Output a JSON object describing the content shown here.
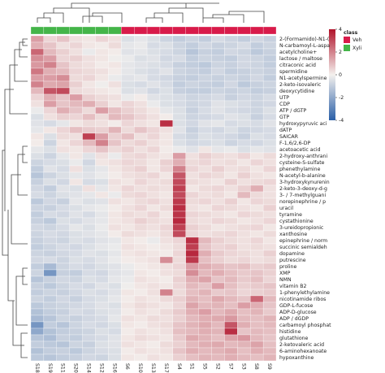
{
  "chart_data": {
    "type": "heatmap",
    "rows": [
      "2-(Formamido)-N1-(",
      "N-carbamoyl-L-aspa",
      "acetylcholine+",
      "lactose / maltose",
      "citraconic acid",
      "spermidine",
      "N1-acetylspermine",
      "2-keto-isovaleric",
      "deoxycytidine",
      "UTP",
      "CDP",
      "ATP / dGTP",
      "GTP",
      "hydroxypyruvic aci",
      "dATP",
      "SAICAR",
      "F-1,6/2,6-DP",
      "acetoacetic acid",
      "2-hydroxy-anthrani",
      "cysteine-S-sulfate",
      "phenethylamine",
      "N-acetyl-b-alanine",
      "3-hydroxykynurenin",
      "2-keto-3-deoxy-d-g",
      "3- / 7-methylguani",
      "norepinephrine / p",
      "uracil",
      "tyramine",
      "cystathionine",
      "3-ureidopropionic",
      "xanthosine",
      "epinephrine / norm",
      "succinic semialdeh",
      "dopamine",
      "putrescine",
      "proline",
      "XMP",
      "NMN",
      "vitamin B2",
      "1-phenylethylamine",
      "nicotinamide ribos",
      "GDP-L-fucose",
      "ADP-D-glucose",
      "ADP / dGDP",
      "carbamoyl phosphat",
      "histidine",
      "glutathione",
      "2-ketovaleric acid",
      "6-aminohexanoate",
      "hypoxanthine"
    ],
    "columns": [
      "S18",
      "S19",
      "S11",
      "S20",
      "S14",
      "S12",
      "S16",
      "S6",
      "S10",
      "S13",
      "S17",
      "S4",
      "S1",
      "S5",
      "S2",
      "S7",
      "S3",
      "S8",
      "S9"
    ],
    "column_class": [
      1,
      1,
      1,
      1,
      1,
      1,
      1,
      0,
      0,
      0,
      0,
      0,
      0,
      0,
      0,
      0,
      0,
      0,
      0
    ],
    "class_legend": {
      "title": "class",
      "groups": [
        {
          "name": "Veh",
          "color": "#d81b4a"
        },
        {
          "name": "Xyli",
          "color": "#44b549"
        }
      ]
    },
    "colors": {
      "low": "#2a5fa8",
      "mid": "#f4f1ee",
      "high": "#b0122a"
    },
    "zlim": [
      -4,
      4
    ],
    "zticks": [
      4,
      2,
      0,
      -2,
      -4
    ],
    "values": [
      [
        1.5,
        0.5,
        0.8,
        0.3,
        0.2,
        0.5,
        0.3,
        -0.5,
        -0.3,
        -0.5,
        -0.8,
        -1,
        -0.8,
        -1,
        -0.6,
        -0.8,
        -1,
        -0.7,
        -0.9
      ],
      [
        1.2,
        0.8,
        0.3,
        0.5,
        0.2,
        0.1,
        0.4,
        -0.3,
        -0.2,
        -0.6,
        -0.5,
        -0.8,
        -1,
        -0.7,
        -0.9,
        -0.8,
        -0.6,
        -1,
        -0.8
      ],
      [
        2.5,
        1.0,
        0.6,
        0.3,
        -0.2,
        0.2,
        0.1,
        -0.4,
        -0.3,
        -0.5,
        -0.6,
        -0.8,
        -1.2,
        -0.9,
        -1,
        -0.7,
        -0.8,
        -1.1,
        -0.9
      ],
      [
        1.8,
        1.5,
        0.5,
        0.6,
        0.3,
        0.2,
        -0.1,
        -0.2,
        -0.5,
        -0.4,
        -0.7,
        -0.6,
        -1,
        -0.8,
        -0.9,
        -1,
        -0.7,
        -0.8,
        -1
      ],
      [
        1.6,
        2.0,
        0.8,
        0.4,
        0.3,
        0.1,
        0.2,
        -0.3,
        -0.4,
        -0.5,
        -0.6,
        -0.9,
        -1,
        -1.1,
        -0.8,
        -0.9,
        -0.7,
        -0.8,
        -1
      ],
      [
        2.2,
        1.2,
        1.0,
        0.5,
        0.4,
        0.3,
        0.1,
        -0.3,
        -0.5,
        -0.6,
        -0.4,
        -0.8,
        -0.9,
        -1,
        -0.7,
        -1,
        -0.9,
        -0.8,
        -0.9
      ],
      [
        1.5,
        1.5,
        1.8,
        0.4,
        0.5,
        0.2,
        -0.2,
        -0.4,
        -0.3,
        -0.6,
        -0.7,
        -0.9,
        -1,
        -0.8,
        -0.9,
        -0.8,
        -0.9,
        -0.7,
        -1
      ],
      [
        2.0,
        1.3,
        1.4,
        0.6,
        0.2,
        -0.1,
        0.3,
        -0.5,
        -0.6,
        -0.4,
        -0.6,
        -1,
        -0.8,
        -0.9,
        -1,
        -0.7,
        -1.1,
        -0.9,
        -0.8
      ],
      [
        1.0,
        2.8,
        3.0,
        0.4,
        0.3,
        0.2,
        0.1,
        -0.5,
        -0.4,
        -0.7,
        -0.5,
        -0.9,
        -1,
        -1,
        -0.8,
        -0.9,
        -0.8,
        -1,
        -0.9
      ],
      [
        0.5,
        1.2,
        0.8,
        1.5,
        0.6,
        0.4,
        0.3,
        -0.2,
        0.1,
        -0.4,
        -0.5,
        -0.6,
        -0.8,
        -0.7,
        -0.6,
        -0.9,
        -0.7,
        -0.8,
        -0.6
      ],
      [
        0.3,
        1.5,
        0.8,
        1.0,
        1.2,
        0.6,
        0.2,
        0.5,
        0.3,
        -0.2,
        -0.5,
        -0.6,
        -0.8,
        -0.7,
        -0.4,
        -0.5,
        -0.6,
        -0.8,
        -0.7
      ],
      [
        -0.2,
        0.5,
        1.2,
        0.8,
        0.4,
        1.5,
        0.9,
        0.6,
        0.4,
        0.2,
        -0.3,
        -0.5,
        -0.9,
        -0.6,
        -0.4,
        -0.6,
        -0.7,
        -0.8,
        -0.5
      ],
      [
        -0.5,
        0.3,
        0.6,
        0.5,
        0.9,
        0.4,
        1.0,
        0.8,
        0.5,
        0.3,
        0.1,
        -0.5,
        -0.8,
        -0.7,
        -0.6,
        -0.4,
        -0.5,
        -0.9,
        -0.6
      ],
      [
        -0.4,
        -0.6,
        -0.3,
        0.2,
        0.4,
        0.3,
        0.1,
        0.5,
        0.3,
        0.2,
        3.5,
        -0.5,
        -0.7,
        -0.4,
        -0.3,
        -0.6,
        -0.5,
        -0.6,
        -0.4
      ],
      [
        -0.3,
        0.2,
        0.5,
        0.9,
        0.7,
        0.6,
        1.1,
        0.4,
        0.8,
        0.5,
        0.3,
        -0.4,
        -0.9,
        -0.6,
        -0.7,
        -0.5,
        -0.8,
        -0.7,
        -0.6
      ],
      [
        0.2,
        -0.5,
        0.4,
        0.3,
        3.2,
        1.5,
        0.6,
        0.9,
        0.3,
        0.5,
        0.2,
        -0.6,
        -0.8,
        -0.5,
        -0.6,
        -0.7,
        -0.9,
        -0.5,
        -0.6
      ],
      [
        0.1,
        -0.8,
        0.2,
        0.5,
        1.0,
        2.0,
        0.8,
        0.4,
        0.6,
        0.3,
        0.2,
        -0.5,
        -0.7,
        -0.6,
        -0.5,
        -0.8,
        -0.6,
        -0.7,
        -0.5
      ],
      [
        -0.3,
        -0.5,
        0.3,
        0.2,
        0.5,
        0.8,
        0.4,
        0.6,
        0.3,
        0.5,
        0.1,
        -0.2,
        -0.4,
        0.2,
        -0.3,
        -0.2,
        -0.5,
        -0.3,
        -0.4
      ],
      [
        -0.5,
        -0.8,
        -0.3,
        0.2,
        -0.4,
        0.3,
        -0.2,
        0.4,
        0.5,
        0.3,
        0.2,
        1.5,
        0.3,
        0.6,
        0.4,
        0.3,
        0.5,
        0.2,
        0.4
      ],
      [
        -0.8,
        -0.6,
        -0.5,
        -0.2,
        -0.7,
        0.2,
        0.3,
        0.5,
        0.4,
        0.2,
        0.6,
        1.2,
        0.4,
        0.5,
        0.3,
        0.4,
        0.2,
        0.5,
        0.3
      ],
      [
        -1.0,
        -0.4,
        -0.6,
        0.3,
        -0.5,
        -0.3,
        0.2,
        0.4,
        0.6,
        0.2,
        0.5,
        2.0,
        0.5,
        0.3,
        0.6,
        0.3,
        0.4,
        0.2,
        0.5
      ],
      [
        -1.2,
        -0.8,
        -0.5,
        -0.3,
        -0.4,
        -0.2,
        0.1,
        0.3,
        0.4,
        0.5,
        0.2,
        2.8,
        0.3,
        0.5,
        0.4,
        0.2,
        0.6,
        0.3,
        0.2
      ],
      [
        -0.9,
        -0.5,
        -0.7,
        0.2,
        -0.6,
        -0.5,
        0.3,
        0.2,
        0.5,
        0.3,
        0.4,
        3.0,
        0.4,
        0.3,
        0.2,
        0.6,
        0.3,
        0.4,
        0.5
      ],
      [
        -0.7,
        -1.0,
        -0.4,
        -0.5,
        0.3,
        -0.3,
        0.2,
        0.5,
        0.3,
        0.4,
        0.3,
        3.2,
        0.2,
        0.4,
        0.5,
        0.3,
        0.6,
        1.2,
        0.3
      ],
      [
        -0.6,
        -0.8,
        -0.5,
        -0.4,
        -0.3,
        0.2,
        -0.2,
        0.4,
        0.5,
        0.3,
        0.2,
        3.0,
        0.5,
        0.3,
        0.4,
        0.2,
        1.0,
        0.4,
        0.3
      ],
      [
        -1.1,
        -0.7,
        -0.9,
        -0.3,
        -0.5,
        -0.4,
        0.3,
        0.2,
        0.4,
        0.5,
        0.3,
        3.3,
        0.4,
        0.5,
        0.3,
        0.6,
        0.2,
        0.5,
        0.4
      ],
      [
        -0.8,
        -0.9,
        -0.6,
        -0.5,
        -0.3,
        -0.2,
        0.1,
        0.3,
        0.5,
        0.2,
        0.4,
        3.5,
        0.3,
        0.2,
        0.5,
        0.4,
        0.3,
        0.2,
        0.6
      ],
      [
        -1.0,
        -0.6,
        -0.7,
        -0.4,
        -0.6,
        -0.3,
        0.2,
        0.4,
        0.3,
        0.5,
        0.2,
        3.4,
        0.5,
        0.4,
        0.3,
        0.2,
        0.5,
        0.4,
        0.3
      ],
      [
        -0.9,
        -1.1,
        -0.5,
        -0.6,
        -0.4,
        -0.3,
        0.2,
        0.3,
        0.6,
        0.4,
        0.3,
        3.6,
        0.4,
        0.3,
        0.5,
        0.4,
        0.2,
        0.3,
        0.5
      ],
      [
        -0.7,
        -0.8,
        -0.6,
        -0.3,
        -0.5,
        -0.2,
        0.3,
        0.2,
        0.4,
        0.3,
        0.5,
        3.2,
        0.6,
        0.4,
        0.2,
        0.3,
        0.4,
        0.5,
        0.2
      ],
      [
        -0.8,
        -0.6,
        -0.7,
        -0.5,
        -0.4,
        -0.3,
        0.1,
        0.4,
        0.3,
        0.2,
        0.4,
        3.0,
        0.5,
        0.3,
        0.4,
        0.5,
        0.3,
        0.2,
        0.4
      ],
      [
        -0.9,
        -0.7,
        -0.8,
        -0.5,
        -0.6,
        -0.4,
        -0.3,
        0.2,
        0.1,
        -0.2,
        0.3,
        0.5,
        3.5,
        1.0,
        0.6,
        0.4,
        0.3,
        0.5,
        0.2
      ],
      [
        -1.0,
        -0.8,
        -0.6,
        -0.7,
        -0.5,
        -0.3,
        -0.2,
        0.3,
        0.2,
        0.1,
        0.2,
        0.4,
        3.2,
        0.8,
        0.5,
        0.6,
        0.3,
        0.4,
        0.3
      ],
      [
        -0.8,
        -0.9,
        -0.7,
        -0.6,
        -0.4,
        -0.5,
        -0.3,
        0.2,
        0.3,
        0.2,
        0.1,
        0.5,
        3.6,
        1.2,
        0.7,
        0.5,
        0.4,
        0.3,
        0.6
      ],
      [
        -0.7,
        -0.6,
        -0.8,
        -0.5,
        -0.6,
        -0.4,
        -0.2,
        0.1,
        0.2,
        0.3,
        1.8,
        0.4,
        3.3,
        0.9,
        0.6,
        0.4,
        0.5,
        0.3,
        0.4
      ],
      [
        -1.0,
        -1.5,
        -0.8,
        -0.6,
        -0.7,
        -0.5,
        -0.4,
        -0.2,
        0.1,
        0.2,
        0.3,
        0.5,
        1.5,
        1.2,
        1.0,
        0.8,
        0.9,
        0.6,
        0.7
      ],
      [
        -0.8,
        -2.5,
        -0.9,
        -1.0,
        -0.6,
        -0.7,
        -0.4,
        -0.3,
        0.2,
        0.1,
        0.3,
        0.4,
        1.8,
        1.0,
        1.2,
        0.9,
        0.7,
        0.8,
        0.6
      ],
      [
        -1.2,
        -0.9,
        -0.7,
        -0.8,
        -0.5,
        -0.6,
        -0.3,
        -0.2,
        0.3,
        0.2,
        0.1,
        0.6,
        1.2,
        1.4,
        0.8,
        1.0,
        0.7,
        0.9,
        0.5
      ],
      [
        -0.9,
        -1.1,
        -0.8,
        -0.6,
        -0.7,
        -0.4,
        -0.5,
        -0.1,
        0.2,
        0.3,
        0.2,
        0.5,
        1.0,
        0.8,
        1.5,
        0.9,
        0.6,
        0.7,
        0.8
      ],
      [
        -1.0,
        -0.8,
        -0.9,
        -0.7,
        -0.5,
        -0.6,
        -0.4,
        0.2,
        0.1,
        0.3,
        2.0,
        0.4,
        0.9,
        1.1,
        0.7,
        0.8,
        0.5,
        0.6,
        0.7
      ],
      [
        -0.8,
        -1.0,
        -0.7,
        -0.9,
        -0.6,
        -0.5,
        -0.3,
        0.1,
        0.3,
        0.2,
        0.4,
        0.6,
        1.1,
        0.9,
        1.3,
        1.0,
        0.8,
        2.5,
        1.0
      ],
      [
        -1.1,
        -0.9,
        -0.8,
        -0.7,
        -0.6,
        -0.4,
        -0.5,
        0.2,
        0.4,
        0.3,
        0.2,
        0.5,
        1.4,
        1.0,
        1.1,
        0.9,
        1.5,
        1.2,
        0.8
      ],
      [
        -1.3,
        -1.0,
        -0.9,
        -0.6,
        -0.7,
        -0.5,
        -0.4,
        0.1,
        0.3,
        0.2,
        0.4,
        0.7,
        1.2,
        1.5,
        1.0,
        1.3,
        0.9,
        1.1,
        0.7
      ],
      [
        -1.5,
        -1.2,
        -0.8,
        -0.9,
        -0.7,
        -0.6,
        -0.3,
        0.3,
        0.2,
        0.4,
        0.3,
        0.6,
        1.0,
        1.2,
        1.3,
        1.6,
        1.0,
        0.9,
        1.1
      ],
      [
        -2.5,
        -1.0,
        -1.2,
        -0.8,
        -0.6,
        -0.7,
        -0.5,
        0.2,
        0.1,
        0.3,
        0.4,
        0.8,
        1.1,
        1.3,
        1.0,
        2.8,
        1.2,
        0.9,
        1.0
      ],
      [
        -2.0,
        -1.3,
        -1.0,
        -0.9,
        -0.8,
        -0.5,
        -0.6,
        0.1,
        0.3,
        0.2,
        0.3,
        0.9,
        1.0,
        1.2,
        1.1,
        3.5,
        0.8,
        1.0,
        0.9
      ],
      [
        -1.2,
        -1.4,
        -0.9,
        -1.0,
        -0.7,
        -0.6,
        -0.4,
        0.2,
        0.4,
        0.3,
        0.2,
        0.7,
        1.3,
        1.1,
        0.9,
        1.4,
        1.6,
        1.0,
        0.8
      ],
      [
        -1.0,
        -1.1,
        -1.2,
        -0.8,
        -0.9,
        -0.5,
        -0.4,
        0.3,
        0.2,
        0.1,
        0.4,
        0.6,
        1.0,
        1.2,
        1.3,
        1.0,
        1.1,
        1.4,
        0.9
      ],
      [
        -1.3,
        -1.0,
        -0.9,
        -1.1,
        -0.8,
        -0.6,
        -0.5,
        0.1,
        0.3,
        0.2,
        0.3,
        0.8,
        1.2,
        1.0,
        1.1,
        1.3,
        0.9,
        1.2,
        1.0
      ],
      [
        -1.1,
        -1.2,
        -1.0,
        -0.9,
        -0.7,
        -0.8,
        -0.5,
        0.2,
        0.1,
        0.3,
        0.2,
        0.6,
        0.9,
        1.1,
        1.0,
        1.2,
        1.0,
        0.9,
        1.1
      ]
    ]
  }
}
